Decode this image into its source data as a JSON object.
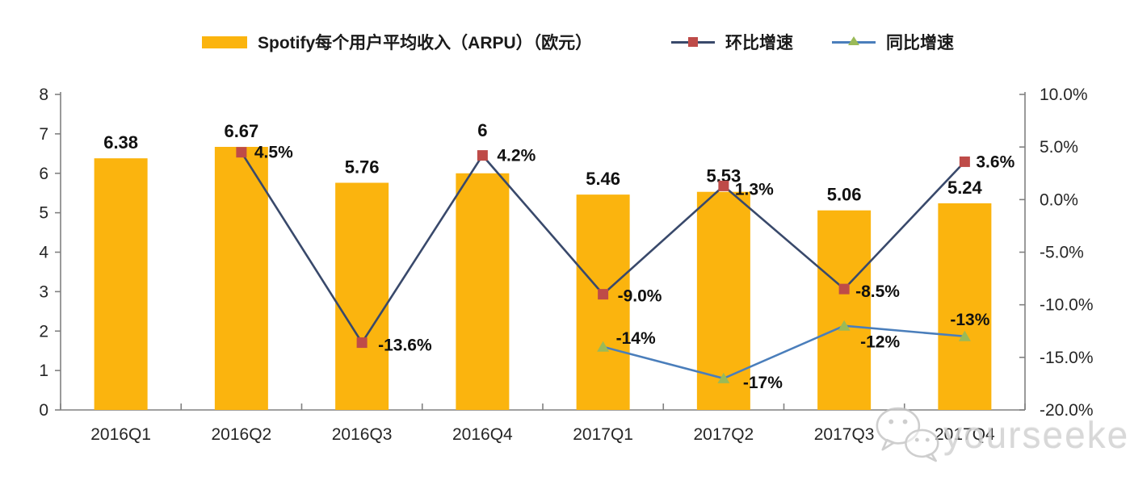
{
  "colors": {
    "bar-color": "#FBB40E",
    "qoq-line": "#39496B",
    "qoq-marker": "#BE4B48",
    "yoy-line": "#4A7EBB",
    "yoy-marker": "#9ABA58",
    "axis-line": "#808080",
    "label-text": "#111111",
    "watermark": "#d2d2d2"
  },
  "legend": {
    "items": [
      {
        "label": "Spotify每个用户平均收入（ARPU）（欧元）",
        "marker": "bar-swatch"
      },
      {
        "label": "环比增速",
        "marker": "line-square"
      },
      {
        "label": "同比增速",
        "marker": "line-triangle"
      }
    ]
  },
  "chart_data": {
    "type": "combo-bar-line",
    "categories": [
      "2016Q1",
      "2016Q2",
      "2016Q3",
      "2016Q4",
      "2017Q1",
      "2017Q2",
      "2017Q3",
      "2017Q4"
    ],
    "left_axis": {
      "min": 0,
      "max": 8,
      "ticks": [
        "8",
        "7",
        "6",
        "5",
        "4",
        "3",
        "2",
        "1",
        "0"
      ]
    },
    "right_axis": {
      "min": -20,
      "max": 10,
      "ticks": [
        "10.0%",
        "5.0%",
        "0.0%",
        "-5.0%",
        "-10.0%",
        "-15.0%",
        "-20.0%"
      ]
    },
    "grid": "off",
    "legend_position": "top",
    "bars": {
      "name": "Spotify每个用户平均收入（ARPU）（欧元）",
      "axis": "left",
      "values": [
        6.38,
        6.67,
        5.76,
        6,
        5.46,
        5.53,
        5.06,
        5.24
      ],
      "labels": [
        "6.38",
        "6.67",
        "5.76",
        "6",
        "5.46",
        "5.53",
        "5.06",
        "5.24"
      ],
      "label_dy": [
        0,
        0,
        0,
        -34,
        0,
        0,
        0,
        0
      ]
    },
    "lines": [
      {
        "name": "环比增速",
        "axis": "right",
        "marker": "square",
        "values": [
          null,
          4.5,
          -13.6,
          4.2,
          -9.0,
          1.3,
          -8.5,
          3.6
        ],
        "labels": [
          null,
          "4.5%",
          "-13.6%",
          "4.2%",
          "-9.0%",
          "1.3%",
          "-8.5%",
          "3.6%"
        ],
        "label_offsets": [
          null,
          [
            16,
            0
          ],
          [
            20,
            3
          ],
          [
            18,
            0
          ],
          [
            18,
            2
          ],
          [
            14,
            4
          ],
          [
            14,
            3
          ],
          [
            14,
            0
          ]
        ]
      },
      {
        "name": "同比增速",
        "axis": "right",
        "marker": "triangle",
        "values": [
          null,
          null,
          null,
          null,
          -14,
          -17,
          -12,
          -13
        ],
        "labels": [
          null,
          null,
          null,
          null,
          "-14%",
          "-17%",
          "-12%",
          "-13%"
        ],
        "label_offsets": [
          null,
          null,
          null,
          null,
          [
            16,
            -11
          ],
          [
            24,
            5
          ],
          [
            20,
            20
          ],
          [
            -18,
            -21
          ]
        ]
      }
    ]
  },
  "watermark": {
    "text": "yourseeker",
    "icon": "wechat-icon"
  }
}
